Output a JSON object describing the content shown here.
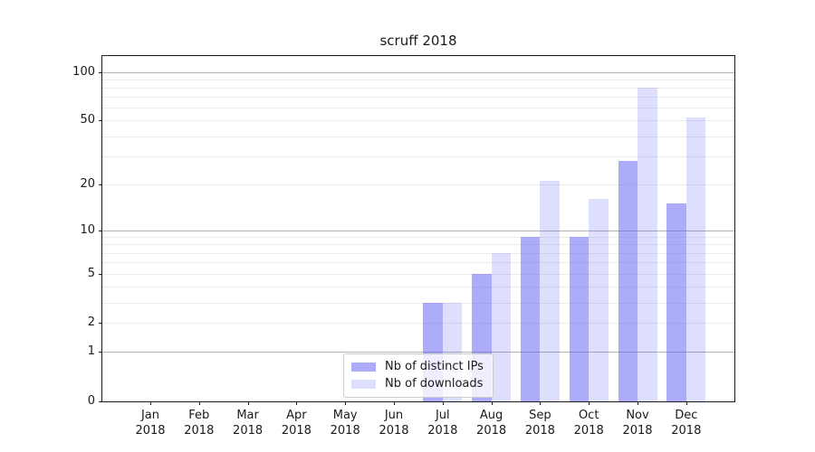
{
  "chart_data": {
    "type": "bar",
    "title": "scruff 2018",
    "categories": [
      "Jan",
      "Feb",
      "Mar",
      "Apr",
      "May",
      "Jun",
      "Jul",
      "Aug",
      "Sep",
      "Oct",
      "Nov",
      "Dec"
    ],
    "category_year": "2018",
    "series": [
      {
        "name": "Nb of distinct IPs",
        "color": "rgba(90,90,245,0.5)",
        "values": [
          0,
          0,
          0,
          0,
          0,
          0,
          3,
          5,
          9,
          9,
          28,
          15
        ]
      },
      {
        "name": "Nb of downloads",
        "color": "rgba(90,90,245,0.2)",
        "values": [
          0,
          0,
          0,
          0,
          0,
          0,
          3,
          7,
          21,
          16,
          80,
          52
        ]
      }
    ],
    "xlabel": "",
    "ylabel": "",
    "yscale": "log1p",
    "ylim": [
      0,
      125
    ],
    "y_tick_labels": [
      "0",
      "1",
      "2",
      "5",
      "10",
      "20",
      "50",
      "100"
    ],
    "y_ticks": [
      0,
      1,
      2,
      5,
      10,
      20,
      50,
      100
    ],
    "y_major_gridlines": [
      1,
      10,
      100
    ],
    "y_minor_gridlines": [
      2,
      3,
      4,
      5,
      6,
      7,
      8,
      9,
      20,
      30,
      40,
      50,
      60,
      70,
      80,
      90
    ],
    "grid": true,
    "legend_position": "bottom-center"
  },
  "colors": {
    "bar_dark": "rgba(90,90,245,0.5)",
    "bar_light": "rgba(90,90,245,0.2)",
    "gridline_major": "#b2b2b2",
    "gridline_minor": "#ececec",
    "spine": "#1a1a1a",
    "text": "#1a1a1a",
    "legend_border": "#cccccc"
  }
}
